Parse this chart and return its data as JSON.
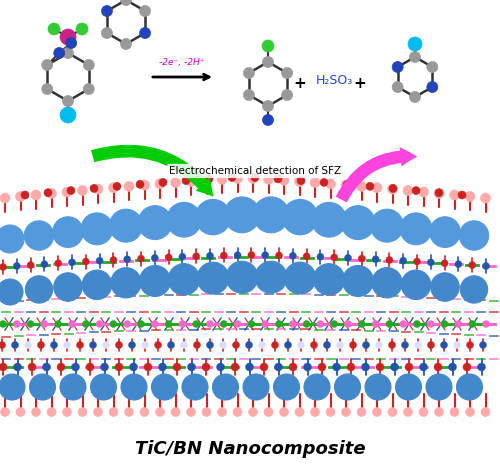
{
  "title": "TiC/BN Nanocomposite",
  "title_fontsize": 13,
  "title_fontweight": "bold",
  "arrow_text": "Electrochemical detection of SFZ",
  "arrow_text_fontsize": 7.5,
  "reaction_text": "-2e⁻, -2H⁺",
  "h2so3_text": "H₂SO₃",
  "plus_text": "+",
  "background_color": "#ffffff",
  "green_arrow_color": "#00cc00",
  "magenta_arrow_color": "#ff44dd",
  "gray_atom_color": "#999999",
  "blue_atom_color": "#2244bb",
  "cyan_atom_color": "#00bbee",
  "green_atom_color": "#33cc33",
  "magenta_atom_color": "#cc2288",
  "nano_blue_large": "#4488cc",
  "nano_blue_large2": "#5599dd",
  "nano_blue_small": "#2255aa",
  "nano_red": "#cc2222",
  "nano_pink": "#ffaaaa",
  "nano_green": "#22aa22",
  "nano_magenta": "#ff66cc",
  "nano_white": "#ffffff",
  "bond_color": "#333333"
}
